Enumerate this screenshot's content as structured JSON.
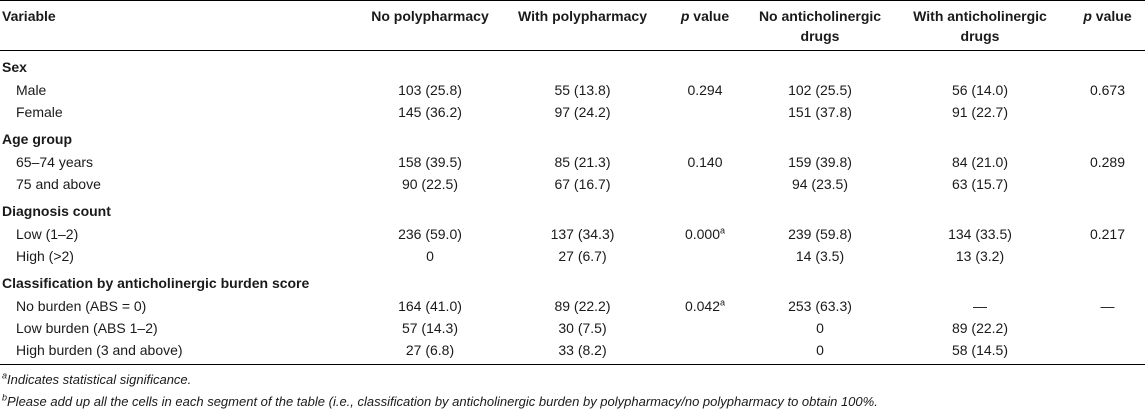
{
  "headers": {
    "variable": "Variable",
    "no_poly": "No polypharmacy",
    "with_poly": "With polypharmacy",
    "p_italic": "p",
    "p_rest": " value",
    "no_antichol_line1": "No anticholinergic",
    "no_antichol_line2": "drugs",
    "with_antichol_line1": "With anticholinergic",
    "with_antichol_line2": "drugs",
    "p2_italic": "p",
    "p2_rest": " value"
  },
  "groups": [
    {
      "title": "Sex",
      "rows": [
        {
          "label": "Male",
          "no_poly": "103 (25.8)",
          "with_poly": "55 (13.8)",
          "p1": "0.294",
          "p1_sup": "",
          "no_ac": "102 (25.5)",
          "with_ac": "56 (14.0)",
          "p2": "0.673"
        },
        {
          "label": "Female",
          "no_poly": "145 (36.2)",
          "with_poly": "97 (24.2)",
          "p1": "",
          "p1_sup": "",
          "no_ac": "151 (37.8)",
          "with_ac": "91 (22.7)",
          "p2": ""
        }
      ]
    },
    {
      "title": "Age group",
      "rows": [
        {
          "label": "65–74 years",
          "no_poly": "158 (39.5)",
          "with_poly": "85 (21.3)",
          "p1": "0.140",
          "p1_sup": "",
          "no_ac": "159 (39.8)",
          "with_ac": "84 (21.0)",
          "p2": "0.289"
        },
        {
          "label": "75 and above",
          "no_poly": "90 (22.5)",
          "with_poly": "67 (16.7)",
          "p1": "",
          "p1_sup": "",
          "no_ac": "94 (23.5)",
          "with_ac": "63 (15.7)",
          "p2": ""
        }
      ]
    },
    {
      "title": "Diagnosis count",
      "rows": [
        {
          "label": "Low (1–2)",
          "no_poly": "236 (59.0)",
          "with_poly": "137 (34.3)",
          "p1": "0.000",
          "p1_sup": "a",
          "no_ac": "239 (59.8)",
          "with_ac": "134 (33.5)",
          "p2": "0.217"
        },
        {
          "label": "High (>2)",
          "no_poly": "0",
          "with_poly": "27 (6.7)",
          "p1": "",
          "p1_sup": "",
          "no_ac": "14 (3.5)",
          "with_ac": "13 (3.2)",
          "p2": ""
        }
      ]
    },
    {
      "title": "Classification by anticholinergic burden score",
      "rows": [
        {
          "label": "No burden (ABS = 0)",
          "no_poly": "164 (41.0)",
          "with_poly": "89 (22.2)",
          "p1": "0.042",
          "p1_sup": "a",
          "no_ac": "253 (63.3)",
          "with_ac": "—",
          "p2": "—"
        },
        {
          "label": "Low burden (ABS 1–2)",
          "no_poly": "57 (14.3)",
          "with_poly": "30 (7.5)",
          "p1": "",
          "p1_sup": "",
          "no_ac": "0",
          "with_ac": "89 (22.2)",
          "p2": ""
        },
        {
          "label": "High burden (3 and above)",
          "no_poly": "27 (6.8)",
          "with_poly": "33 (8.2)",
          "p1": "",
          "p1_sup": "",
          "no_ac": "0",
          "with_ac": "58 (14.5)",
          "p2": ""
        }
      ]
    }
  ],
  "footnotes": [
    {
      "mark": "a",
      "text": "Indicates statistical significance."
    },
    {
      "mark": "b",
      "text": "Please add up all the cells in each segment of the table (i.e., classification by anticholinergic burden by polypharmacy/no polypharmacy to obtain 100%."
    }
  ]
}
